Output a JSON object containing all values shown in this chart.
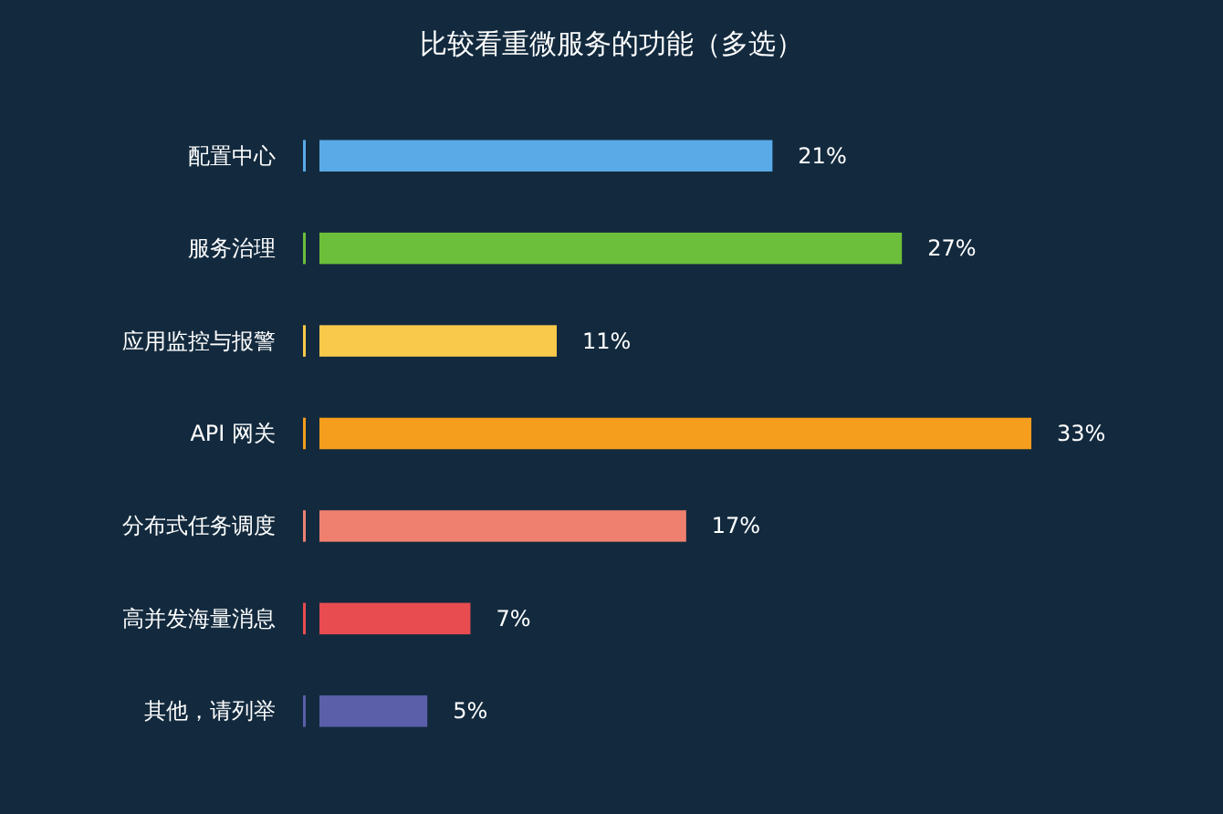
{
  "chart_data": {
    "type": "bar",
    "orientation": "horizontal",
    "title": "比较看重微服务的功能（多选）",
    "categories": [
      "配置中心",
      "服务治理",
      "应用监控与报警",
      "API 网关",
      "分布式任务调度",
      "高并发海量消息",
      "其他，请列举"
    ],
    "values": [
      21,
      27,
      11,
      33,
      17,
      7,
      5
    ],
    "value_labels": [
      "21%",
      "27%",
      "11%",
      "33%",
      "17%",
      "7%",
      "5%"
    ],
    "colors": [
      "#5aaae8",
      "#6cbf3a",
      "#f8c94a",
      "#f59d1c",
      "#ef8070",
      "#e84c50",
      "#5b5faa"
    ],
    "xlim": [
      0,
      33
    ]
  }
}
